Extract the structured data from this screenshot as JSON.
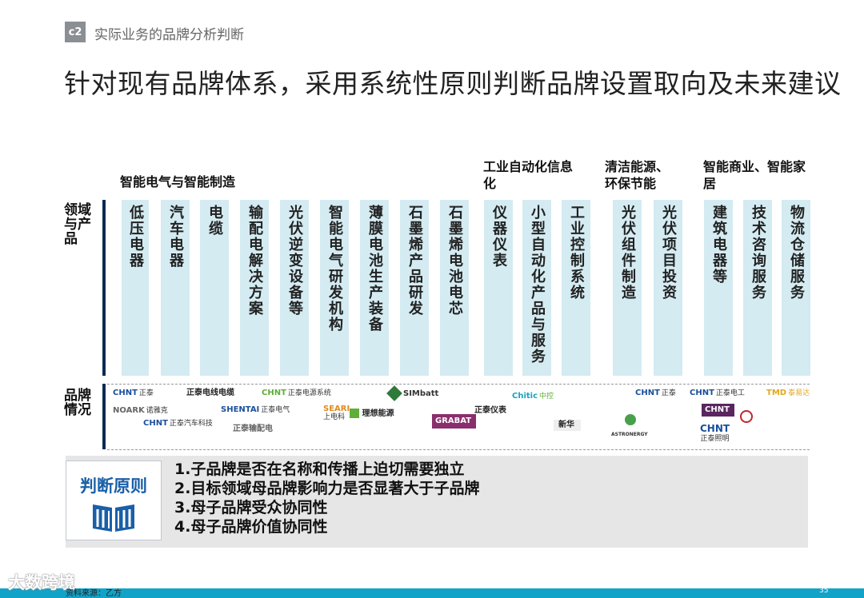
{
  "header": {
    "section_badge": "c2",
    "section_title": "实际业务的品牌分析判断",
    "page_title": "针对现有品牌体系，采用系统性原则判断品牌设置取向及未来建议"
  },
  "row_labels": {
    "domain": "领域与产品",
    "brand": "品牌情况"
  },
  "groups": [
    {
      "label": "智能电气与智能制造"
    },
    {
      "label": "工业自动化信息化"
    },
    {
      "label": "清洁能源、环保节能"
    },
    {
      "label": "智能商业、智能家居"
    }
  ],
  "columns": [
    {
      "label": "低压电器"
    },
    {
      "label": "汽车电器"
    },
    {
      "label": "电缆"
    },
    {
      "label": "输配电解决方案"
    },
    {
      "label": "光伏逆变设备等"
    },
    {
      "label": "智能电气研发机构"
    },
    {
      "label": "薄膜电池生产装备"
    },
    {
      "label": "石墨烯产品研发"
    },
    {
      "label": "石墨烯电池电芯"
    },
    {
      "label": "仪器仪表"
    },
    {
      "label": "小型自动化产品与服务"
    },
    {
      "label": "工业控制系统"
    },
    {
      "label": "光伏组件制造"
    },
    {
      "label": "光伏项目投资"
    },
    {
      "label": "建筑电器等"
    },
    {
      "label": "技术咨询服务"
    },
    {
      "label": "物流仓储服务"
    }
  ],
  "brands": [
    {
      "main": "CHNT",
      "sub": "正泰"
    },
    {
      "main": "NOARK",
      "sub": "诺雅克"
    },
    {
      "main": "CHNT",
      "sub": "正泰汽车科技"
    },
    {
      "main": "正泰电线电缆",
      "sub": ""
    },
    {
      "main": "CHNT",
      "sub": "正泰电源系统"
    },
    {
      "main": "SHENTAI",
      "sub": "正泰电气"
    },
    {
      "main": "正泰输配电",
      "sub": ""
    },
    {
      "main": "SEARI",
      "sub": "上电科"
    },
    {
      "main": "理想能源",
      "sub": ""
    },
    {
      "main": "SIMbatt",
      "sub": ""
    },
    {
      "main": "GRABAT",
      "sub": ""
    },
    {
      "main": "正泰仪表",
      "sub": ""
    },
    {
      "main": "Chitic",
      "sub": "中控"
    },
    {
      "main": "新华",
      "sub": ""
    },
    {
      "main": "CHNT",
      "sub": "正泰"
    },
    {
      "main": "ASTRONERGY",
      "sub": ""
    },
    {
      "main": "CHNT",
      "sub": "正泰电工"
    },
    {
      "main": "CHNT",
      "sub": "正泰照明"
    },
    {
      "main": "CHNT",
      "sub": ""
    },
    {
      "main": "TMD",
      "sub": "泰易达"
    }
  ],
  "principles": {
    "title": "判断原则",
    "items": [
      "1.子品牌是否在名称和传播上迫切需要独立",
      "2.目标领域母品牌影响力是否显著大于子品牌",
      "3.母子品牌受众协同性",
      "4.母子品牌价值协同性"
    ]
  },
  "footer": {
    "watermark": "大数跨境",
    "source": "资料来源：乙方",
    "page_number": "35"
  },
  "colors": {
    "column_fill": "#d4ebf2",
    "accent_blue": "#1a5fa8",
    "divider_navy": "#0b2a55",
    "footer_bar": "#11a3c8"
  }
}
